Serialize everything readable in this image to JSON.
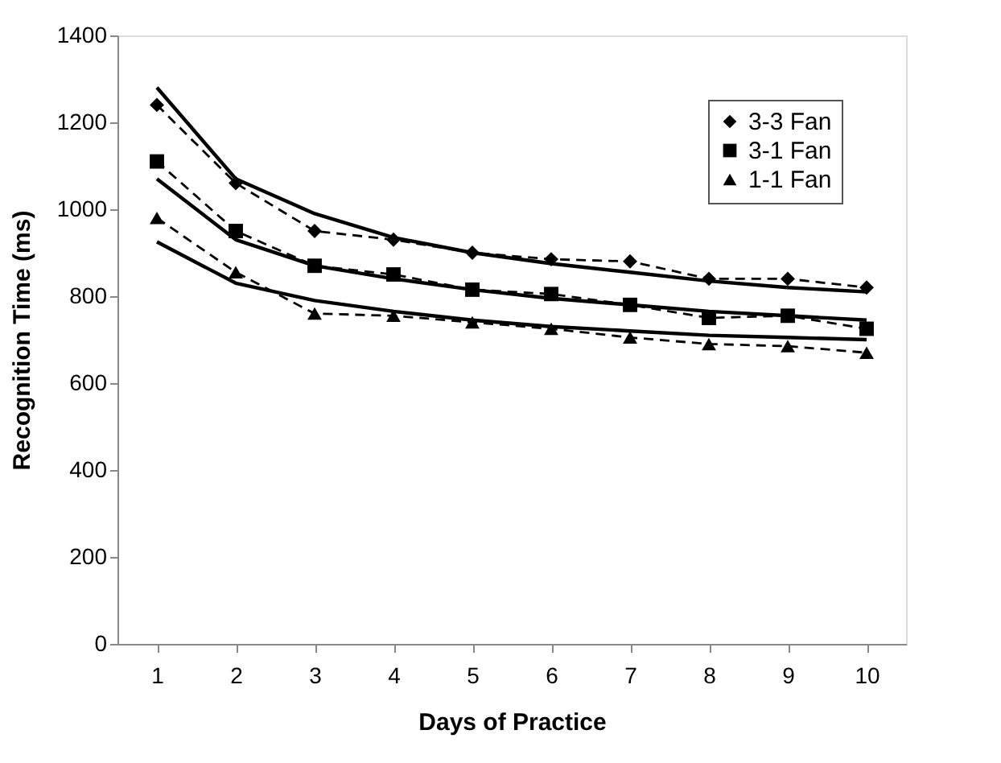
{
  "chart_data": {
    "type": "line",
    "xlabel": "Days of Practice",
    "ylabel": "Recognition Time (ms)",
    "x": [
      1,
      2,
      3,
      4,
      5,
      6,
      7,
      8,
      9,
      10
    ],
    "xlim": [
      0.5,
      10.5
    ],
    "xticks": [
      1,
      2,
      3,
      4,
      5,
      6,
      7,
      8,
      9,
      10
    ],
    "ylim": [
      0,
      1400
    ],
    "yticks": [
      0,
      200,
      400,
      600,
      800,
      1000,
      1200,
      1400
    ],
    "grid": false,
    "legend": "top right",
    "series": [
      {
        "name": "3-3 Fan",
        "color": "#000000",
        "marker": "diamond",
        "line_style": "dashed",
        "values": [
          1240,
          1060,
          950,
          930,
          900,
          885,
          880,
          840,
          840,
          820
        ]
      },
      {
        "name": "3-1 Fan",
        "color": "#000000",
        "marker": "square",
        "line_style": "dashed",
        "values": [
          1110,
          950,
          870,
          850,
          815,
          805,
          780,
          750,
          755,
          725
        ]
      },
      {
        "name": "1-1 Fan",
        "color": "#000000",
        "marker": "triangle",
        "line_style": "dashed",
        "values": [
          980,
          855,
          760,
          755,
          740,
          725,
          705,
          690,
          685,
          670
        ]
      },
      {
        "color": "#000000",
        "marker": "none",
        "line_style": "solid",
        "values": [
          1280,
          1070,
          990,
          935,
          900,
          875,
          855,
          835,
          820,
          810
        ]
      },
      {
        "color": "#000000",
        "marker": "none",
        "line_style": "solid",
        "values": [
          1070,
          930,
          870,
          840,
          815,
          795,
          780,
          765,
          755,
          745
        ]
      },
      {
        "color": "#000000",
        "marker": "none",
        "line_style": "solid",
        "values": [
          925,
          830,
          790,
          765,
          745,
          730,
          720,
          710,
          705,
          700
        ]
      }
    ]
  }
}
